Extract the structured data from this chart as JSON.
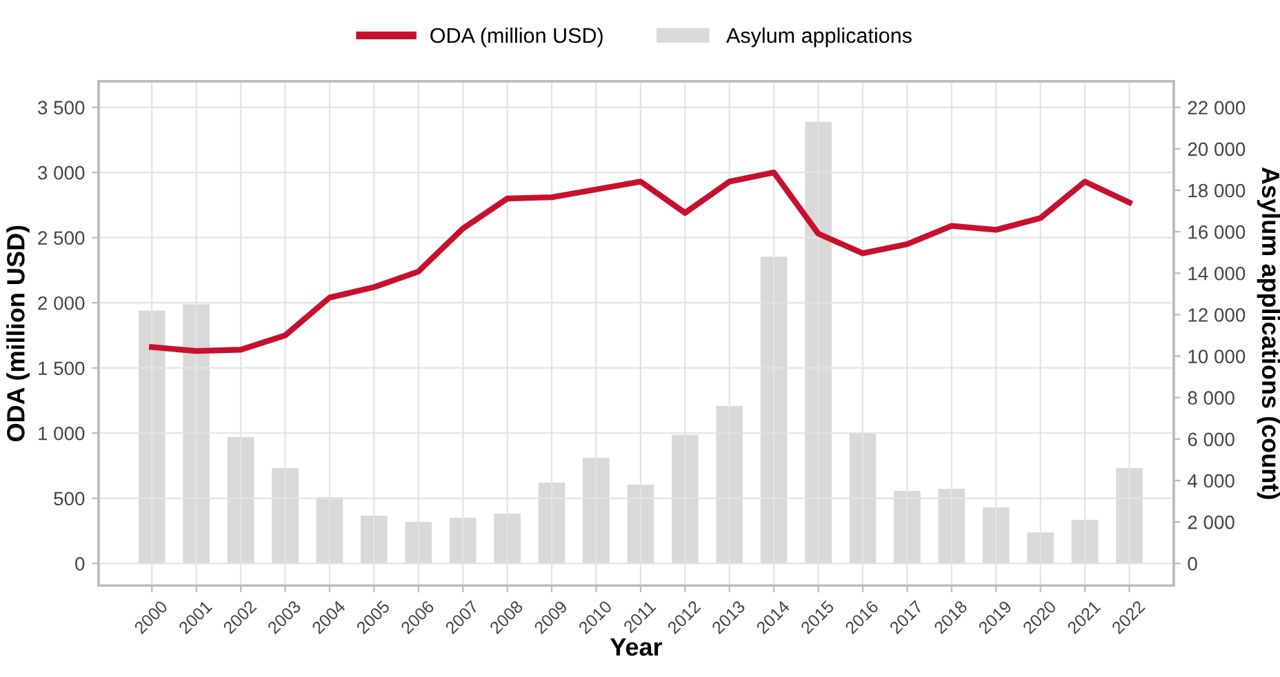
{
  "chart_data": {
    "type": "line",
    "xlabel": "Year",
    "ylabel": "ODA (million USD)",
    "y2label": "Asylum applications (count)",
    "categories": [
      "2000",
      "2001",
      "2002",
      "2003",
      "2004",
      "2005",
      "2006",
      "2007",
      "2008",
      "2009",
      "2010",
      "2011",
      "2012",
      "2013",
      "2014",
      "2015",
      "2016",
      "2017",
      "2018",
      "2019",
      "2020",
      "2021",
      "2022"
    ],
    "series": [
      {
        "name": "Asylum applications",
        "type": "bar",
        "axis": "y2",
        "color": "#d9d9d9",
        "values": [
          12200,
          12500,
          6100,
          4600,
          3200,
          2300,
          2000,
          2200,
          2400,
          3900,
          5100,
          3800,
          6200,
          7600,
          14800,
          21300,
          6300,
          3500,
          3600,
          2700,
          1500,
          2100,
          4600
        ]
      },
      {
        "name": "ODA (million USD)",
        "color": "#c8102e",
        "values": [
          1660,
          1630,
          1640,
          1750,
          2040,
          2120,
          2240,
          2570,
          2800,
          2810,
          2870,
          2930,
          2690,
          2930,
          3000,
          2530,
          2380,
          2450,
          2590,
          2560,
          2650,
          2930,
          2770
        ]
      }
    ],
    "ylim": [
      -170,
      3700
    ],
    "yticks": [
      0,
      {
        "value": 500,
        "label": "500"
      },
      {
        "value": 1000,
        "label": "1 000"
      },
      {
        "value": 1500,
        "label": "1 500"
      },
      {
        "value": 2000,
        "label": "2 000"
      },
      {
        "value": 2500,
        "label": "2 500"
      },
      {
        "value": 3000,
        "label": "3 000"
      },
      {
        "value": 3500,
        "label": "3 500"
      }
    ],
    "y2lim": [
      -1070,
      23260
    ],
    "y2ticks": [
      0,
      {
        "value": 2000,
        "label": "2 000"
      },
      {
        "value": 4000,
        "label": "4 000"
      },
      {
        "value": 6000,
        "label": "6 000"
      },
      {
        "value": 8000,
        "label": "8 000"
      },
      {
        "value": 10000,
        "label": "10 000"
      },
      {
        "value": 12000,
        "label": "12 000"
      },
      {
        "value": 14000,
        "label": "14 000"
      },
      {
        "value": 16000,
        "label": "16 000"
      },
      {
        "value": 18000,
        "label": "18 000"
      },
      {
        "value": 20000,
        "label": "20 000"
      },
      {
        "value": 22000,
        "label": "22 000"
      }
    ],
    "grid": true,
    "legend": "top",
    "marker": "none",
    "line_style": "solid"
  }
}
